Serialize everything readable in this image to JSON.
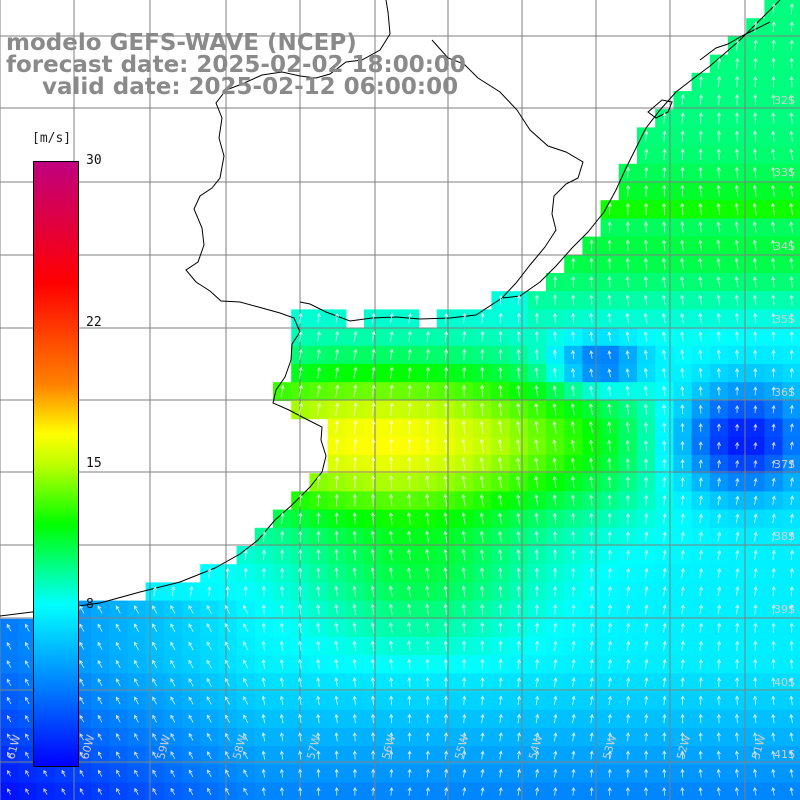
{
  "map": {
    "title_lines": [
      "modelo GEFS-WAVE (NCEP)",
      "forecast date: 2025-02-02 18:00:00",
      "valid date: 2025-02-12 06:00:00"
    ],
    "colorbar": {
      "unit": "[m/s]",
      "min": 0,
      "max": 30,
      "tick_labels": [
        "30",
        "22",
        "15",
        "8"
      ],
      "tick_values": [
        30,
        22,
        15,
        8
      ],
      "stops": [
        {
          "value": 0,
          "color": "#0000ff"
        },
        {
          "value": 4,
          "color": "#0080ff"
        },
        {
          "value": 8,
          "color": "#00ffff"
        },
        {
          "value": 12,
          "color": "#00ff00"
        },
        {
          "value": 15,
          "color": "#bfff00"
        },
        {
          "value": 16.5,
          "color": "#ffff00"
        },
        {
          "value": 19,
          "color": "#ff8000"
        },
        {
          "value": 24,
          "color": "#ff0000"
        },
        {
          "value": 30,
          "color": "#c0007f"
        }
      ]
    },
    "lat_labels": [
      "32S",
      "33S",
      "34S",
      "35S",
      "36S",
      "37S",
      "38S",
      "39S",
      "40S",
      "41S"
    ],
    "lon_labels": [
      "61W",
      "60W",
      "59W",
      "58W",
      "57W",
      "56W",
      "55W",
      "54W",
      "53W",
      "52W",
      "51W"
    ],
    "colors": {
      "land": "#ffffff",
      "coast": "#000000",
      "grid": "#7f7f7f",
      "arrows": "#ffffff",
      "title": "#8a8a8a"
    }
  }
}
